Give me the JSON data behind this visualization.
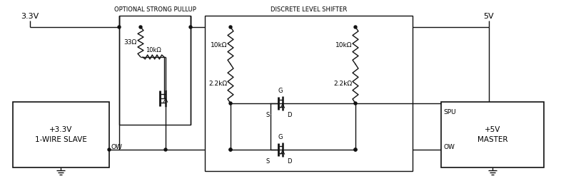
{
  "fig_width": 8.0,
  "fig_height": 2.61,
  "dpi": 100,
  "label_3v3": "3.3V",
  "label_5v": "5V",
  "label_ow_left": "OW",
  "label_ow_right": "OW",
  "label_spu": "SPU",
  "label_slave_line1": "+3.3V",
  "label_slave_line2": "1-WIRE SLAVE",
  "label_master_line1": "+5V",
  "label_master_line2": "MASTER",
  "label_pullup": "OPTIONAL STRONG PULLUP",
  "label_shifter": "DISCRETE LEVEL SHIFTER",
  "label_33ohm": "33Ω",
  "label_10kohm_pullup": "10kΩ",
  "label_10kohm_left": "10kΩ",
  "label_10kohm_right": "10kΩ",
  "label_2k2_left": "2.2kΩ",
  "label_2k2_right": "2.2kΩ",
  "label_g1": "G",
  "label_s1": "S",
  "label_d1": "D",
  "label_g2": "G",
  "label_s2": "S",
  "label_d2": "D",
  "lc": "#111111",
  "lw": 1.0
}
